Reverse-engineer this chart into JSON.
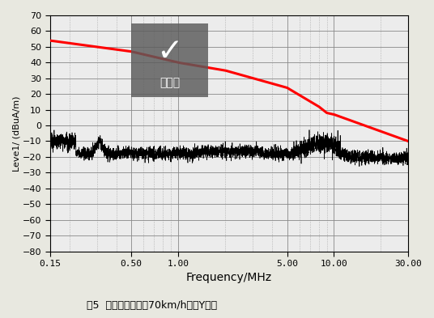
{
  "xlabel": "Frequency/MHz",
  "ylabel": "Leve1/ (dBuA/m)",
  "xmin": 0.15,
  "xmax": 30.0,
  "ymin": -80,
  "ymax": 70,
  "yticks": [
    -80,
    -70,
    -60,
    -50,
    -40,
    -30,
    -20,
    -10,
    0,
    10,
    20,
    30,
    40,
    50,
    60,
    70
  ],
  "xtick_labels": [
    "0.15",
    "0.50",
    "1.00",
    "5.00",
    "10.00",
    "30.00"
  ],
  "xtick_vals": [
    0.15,
    0.5,
    1.0,
    5.0,
    10.0,
    30.0
  ],
  "red_line_x": [
    0.15,
    0.3,
    0.5,
    1.0,
    2.0,
    5.0,
    8.0,
    9.0,
    10.0,
    30.0
  ],
  "red_line_y": [
    54,
    50,
    47,
    40,
    35,
    24,
    12,
    8,
    7,
    -10
  ],
  "plot_bg": "#ececec",
  "fig_bg": "#e8e8e0",
  "grid_major_color": "#888888",
  "grid_minor_color": "#aaaaaa",
  "saved_box_color": "#5a5a5a",
  "saved_text": "已保存",
  "saved_check": "✓",
  "noise_seed": 42,
  "caption": "图5  点火线圈搞铁后70km/h磁场Y向量"
}
